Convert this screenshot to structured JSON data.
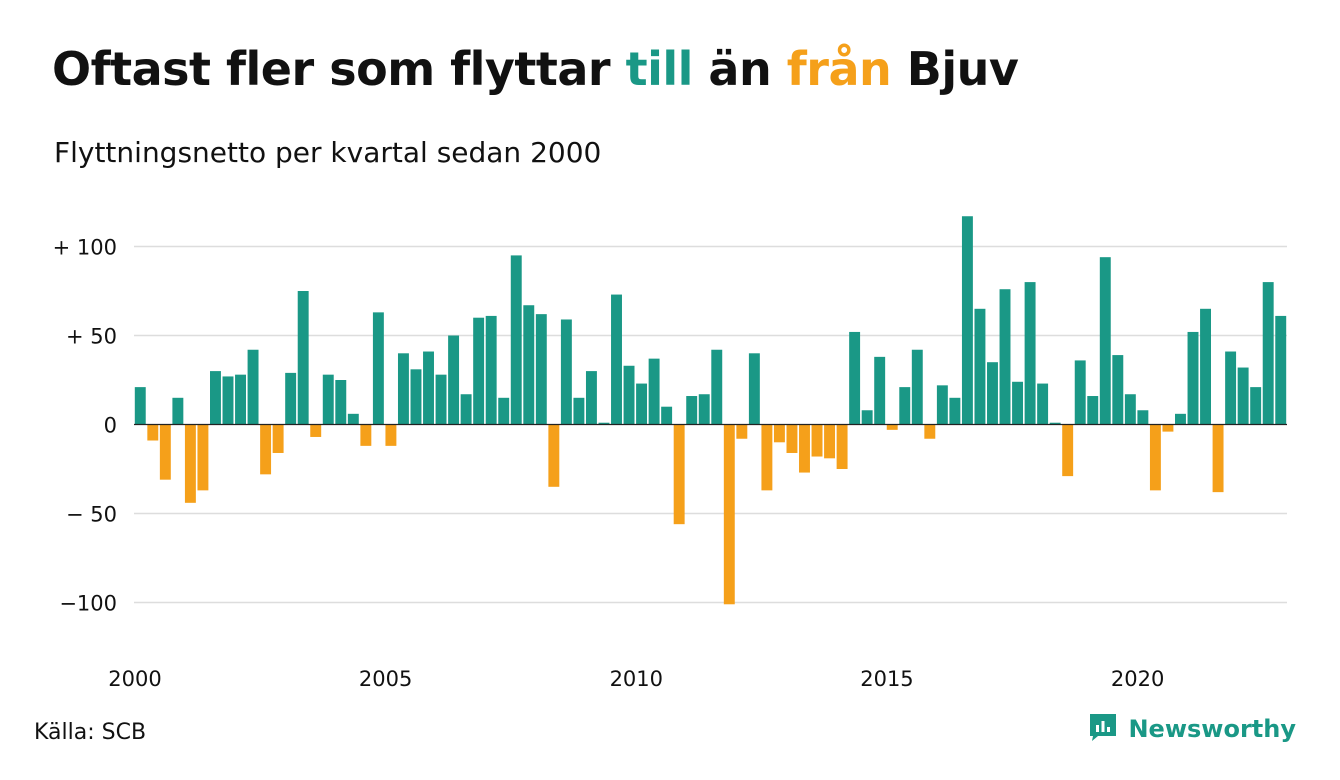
{
  "title": {
    "part1": "Oftast fler som flyttar ",
    "highlight_to": "till",
    "part2": " än ",
    "highlight_from": "från",
    "part3": " Bjuv"
  },
  "subtitle": "Flyttningsnetto per kvartal sedan 2000",
  "source": "Källa: SCB",
  "brand": {
    "name": "Newsworthy",
    "icon": "newsworthy-logo-icon"
  },
  "colors": {
    "positive": "#1a9886",
    "negative": "#f5a01a",
    "grid": "#dddddd",
    "text": "#111111"
  },
  "chart_data": {
    "type": "bar",
    "title": "Oftast fler som flyttar till än från Bjuv",
    "subtitle": "Flyttningsnetto per kvartal sedan 2000",
    "x_start_year": 2000,
    "periods_per_year": 4,
    "ylim": [
      -110,
      125
    ],
    "yticks": [
      {
        "value": 100,
        "label": "+ 100"
      },
      {
        "value": 50,
        "label": "+  50"
      },
      {
        "value": 0,
        "label": "0"
      },
      {
        "value": -50,
        "label": "− 50"
      },
      {
        "value": -100,
        "label": "−100"
      }
    ],
    "xticks": [
      {
        "year": 2000,
        "label": "2000"
      },
      {
        "year": 2005,
        "label": "2005"
      },
      {
        "year": 2010,
        "label": "2010"
      },
      {
        "year": 2015,
        "label": "2015"
      },
      {
        "year": 2020,
        "label": "2020"
      }
    ],
    "grid": true,
    "values": [
      21,
      -9,
      -31,
      15,
      -44,
      -37,
      30,
      27,
      28,
      42,
      -28,
      -16,
      29,
      75,
      -7,
      28,
      25,
      6,
      -12,
      63,
      -12,
      40,
      31,
      41,
      28,
      50,
      17,
      60,
      61,
      15,
      95,
      67,
      62,
      -35,
      59,
      15,
      30,
      1,
      73,
      33,
      23,
      37,
      10,
      -56,
      16,
      17,
      42,
      -101,
      -8,
      40,
      -37,
      -10,
      -16,
      -27,
      -18,
      -19,
      -25,
      52,
      8,
      38,
      -3,
      21,
      42,
      -8,
      22,
      15,
      117,
      65,
      35,
      76,
      24,
      80,
      23,
      1,
      -29,
      36,
      16,
      94,
      39,
      17,
      8,
      -37,
      -4,
      6,
      52,
      65,
      -38,
      41,
      32,
      21,
      80,
      61
    ]
  }
}
